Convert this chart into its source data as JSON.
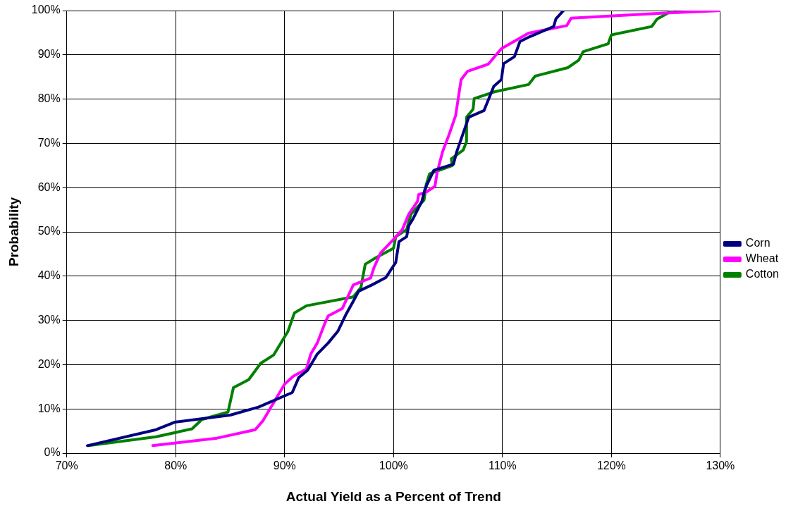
{
  "chart_data": {
    "type": "line",
    "xlabel": "Actual Yield as a Percent of Trend",
    "ylabel": "Probability",
    "xlim": [
      70,
      130
    ],
    "ylim": [
      0,
      100
    ],
    "xticks": [
      {
        "value": 70,
        "label": "70%"
      },
      {
        "value": 80,
        "label": "80%"
      },
      {
        "value": 90,
        "label": "90%"
      },
      {
        "value": 100,
        "label": "100%"
      },
      {
        "value": 110,
        "label": "110%"
      },
      {
        "value": 120,
        "label": "120%"
      },
      {
        "value": 130,
        "label": "130%"
      }
    ],
    "yticks": [
      {
        "value": 0,
        "label": "0%"
      },
      {
        "value": 10,
        "label": "10%"
      },
      {
        "value": 20,
        "label": "20%"
      },
      {
        "value": 30,
        "label": "30%"
      },
      {
        "value": 40,
        "label": "40%"
      },
      {
        "value": 50,
        "label": "50%"
      },
      {
        "value": 60,
        "label": "60%"
      },
      {
        "value": 70,
        "label": "70%"
      },
      {
        "value": 80,
        "label": "80%"
      },
      {
        "value": 90,
        "label": "90%"
      },
      {
        "value": 100,
        "label": "100%"
      }
    ],
    "grid": true,
    "legend": "right",
    "marker": "none",
    "line_style": "solid",
    "series": [
      {
        "name": "Corn",
        "color": "#000080",
        "x": [
          71.9,
          78.2,
          79.9,
          85.0,
          87.6,
          90.7,
          91.3,
          92.1,
          93.0,
          94.0,
          94.9,
          95.6,
          96.3,
          96.8,
          98.0,
          99.3,
          100.2,
          100.5,
          101.2,
          101.4,
          101.8,
          102.6,
          102.9,
          103.7,
          105.5,
          105.8,
          106.9,
          108.3,
          109.2,
          109.9,
          110.1,
          111.1,
          111.6,
          112.5,
          114.7,
          114.9,
          115.6
        ],
        "values": [
          1.7,
          5.3,
          7.0,
          8.6,
          10.4,
          13.7,
          17.1,
          18.7,
          22.4,
          24.9,
          27.6,
          31.2,
          34.3,
          36.6,
          38.0,
          39.7,
          43.1,
          47.8,
          48.9,
          51.4,
          53.0,
          56.9,
          59.8,
          63.9,
          65.3,
          68.1,
          75.9,
          77.4,
          82.9,
          84.4,
          88.0,
          89.6,
          93.0,
          94.1,
          96.4,
          98.1,
          100
        ]
      },
      {
        "name": "Wheat",
        "color": "#ff00ff",
        "x": [
          77.9,
          83.8,
          87.3,
          88.0,
          90.0,
          90.8,
          92.0,
          92.4,
          93.0,
          93.7,
          94.0,
          95.3,
          96.3,
          97.9,
          98.2,
          98.8,
          100.0,
          100.8,
          101.4,
          102.2,
          102.3,
          103.0,
          103.8,
          104.0,
          104.5,
          105.1,
          105.7,
          106.2,
          106.8,
          108.7,
          109.9,
          112.4,
          115.9,
          116.3,
          124.6,
          130.0
        ],
        "values": [
          1.7,
          3.4,
          5.3,
          7.3,
          15.6,
          17.4,
          19.0,
          22.4,
          24.9,
          29.4,
          31.0,
          32.7,
          38.0,
          39.6,
          41.9,
          45.2,
          48.3,
          50.5,
          54.0,
          56.9,
          58.4,
          59.0,
          60.3,
          63.4,
          68.1,
          72.0,
          76.3,
          84.4,
          86.3,
          87.9,
          91.4,
          94.9,
          96.6,
          98.3,
          99.4,
          100
        ]
      },
      {
        "name": "Cotton",
        "color": "#008000",
        "x": [
          72.0,
          78.2,
          81.5,
          82.4,
          84.8,
          85.3,
          86.7,
          87.8,
          89.0,
          90.3,
          90.9,
          92.0,
          96.3,
          97.0,
          97.4,
          98.4,
          100.0,
          100.2,
          101.2,
          101.6,
          102.8,
          103.0,
          103.3,
          105.4,
          105.3,
          106.4,
          106.7,
          106.7,
          107.3,
          107.4,
          109.2,
          112.4,
          113.0,
          116.0,
          117.0,
          117.4,
          119.7,
          120.0,
          123.7,
          124.2,
          125.6
        ],
        "values": [
          1.7,
          3.7,
          5.5,
          7.6,
          9.3,
          14.8,
          16.6,
          20.3,
          22.2,
          27.5,
          31.7,
          33.3,
          35.3,
          37.4,
          42.7,
          44.2,
          46.3,
          48.9,
          50.5,
          54.0,
          57.2,
          60.7,
          63.1,
          65.0,
          66.5,
          68.5,
          70.4,
          75.9,
          77.7,
          80.1,
          81.6,
          83.3,
          85.2,
          87.1,
          88.8,
          90.7,
          92.5,
          94.5,
          96.4,
          98.1,
          100
        ]
      }
    ]
  }
}
